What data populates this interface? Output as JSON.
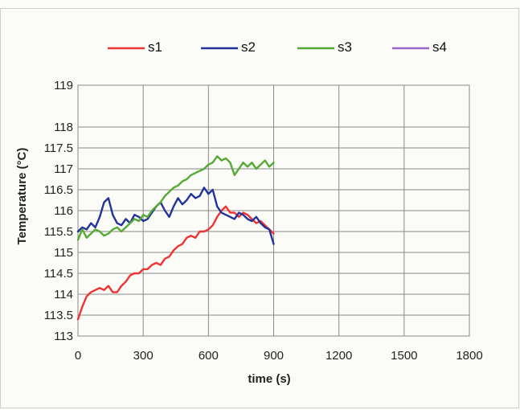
{
  "chart_data": {
    "type": "line",
    "title": "",
    "xlabel": "time (s)",
    "ylabel": "Temperature (°C)",
    "xlim": [
      0,
      1800
    ],
    "ylim": [
      113,
      119
    ],
    "xticks": [
      0,
      300,
      600,
      900,
      1200,
      1500,
      1800
    ],
    "xtick_labels": [
      "0",
      "300",
      "600",
      "900",
      "1200",
      "1500",
      "1800"
    ],
    "yticks": [
      113,
      113.5,
      114,
      114.5,
      115,
      115.5,
      116,
      116.5,
      117,
      117.5,
      118,
      119
    ],
    "ytick_labels": [
      "113",
      "113.5",
      "114",
      "114.5",
      "115",
      "115.5",
      "116",
      "116.5",
      "117",
      "117.5",
      "118",
      "119"
    ],
    "grid": true,
    "legend_position": "top",
    "series": [
      {
        "name": "s1",
        "color": "#ee3333",
        "x": [
          0,
          20,
          40,
          60,
          80,
          100,
          120,
          140,
          160,
          180,
          200,
          220,
          240,
          260,
          280,
          300,
          320,
          340,
          360,
          380,
          400,
          420,
          440,
          460,
          480,
          500,
          520,
          540,
          560,
          580,
          600,
          620,
          640,
          660,
          680,
          700,
          720,
          740,
          760,
          780,
          800,
          820,
          840,
          860,
          880,
          900
        ],
        "y": [
          113.4,
          113.7,
          113.95,
          114.05,
          114.1,
          114.15,
          114.1,
          114.2,
          114.05,
          114.05,
          114.2,
          114.3,
          114.45,
          114.5,
          114.5,
          114.6,
          114.6,
          114.7,
          114.75,
          114.7,
          114.85,
          114.9,
          115.05,
          115.15,
          115.2,
          115.35,
          115.4,
          115.35,
          115.5,
          115.5,
          115.55,
          115.65,
          115.85,
          116.0,
          116.1,
          115.95,
          115.95,
          115.85,
          115.95,
          115.9,
          115.8,
          115.7,
          115.75,
          115.65,
          115.55,
          115.45
        ]
      },
      {
        "name": "s2",
        "color": "#223399",
        "x": [
          0,
          20,
          40,
          60,
          80,
          100,
          120,
          140,
          160,
          180,
          200,
          220,
          240,
          260,
          280,
          300,
          320,
          340,
          360,
          380,
          400,
          420,
          440,
          460,
          480,
          500,
          520,
          540,
          560,
          580,
          600,
          620,
          640,
          660,
          680,
          700,
          720,
          740,
          760,
          780,
          800,
          820,
          840,
          860,
          880,
          900
        ],
        "y": [
          115.5,
          115.6,
          115.55,
          115.7,
          115.6,
          115.85,
          116.2,
          116.3,
          115.9,
          115.7,
          115.65,
          115.8,
          115.7,
          115.9,
          115.85,
          115.75,
          115.8,
          115.95,
          116.1,
          116.2,
          116.0,
          115.85,
          116.1,
          116.3,
          116.15,
          116.25,
          116.4,
          116.3,
          116.35,
          116.55,
          116.4,
          116.5,
          116.1,
          115.95,
          115.9,
          115.85,
          115.8,
          115.95,
          115.9,
          115.8,
          115.75,
          115.85,
          115.7,
          115.6,
          115.55,
          115.2
        ]
      },
      {
        "name": "s3",
        "color": "#55aa33",
        "x": [
          0,
          20,
          40,
          60,
          80,
          100,
          120,
          140,
          160,
          180,
          200,
          220,
          240,
          260,
          280,
          300,
          320,
          340,
          360,
          380,
          400,
          420,
          440,
          460,
          480,
          500,
          520,
          540,
          560,
          580,
          600,
          620,
          640,
          660,
          680,
          700,
          720,
          740,
          760,
          780,
          800,
          820,
          840,
          860,
          880,
          900
        ],
        "y": [
          115.3,
          115.55,
          115.35,
          115.45,
          115.55,
          115.5,
          115.4,
          115.45,
          115.55,
          115.6,
          115.5,
          115.6,
          115.7,
          115.8,
          115.75,
          115.9,
          115.85,
          116.0,
          116.1,
          116.2,
          116.35,
          116.45,
          116.55,
          116.6,
          116.7,
          116.75,
          116.85,
          116.9,
          116.95,
          117.0,
          117.1,
          117.15,
          117.3,
          117.2,
          117.25,
          117.15,
          116.85,
          117.0,
          117.15,
          117.05,
          117.15,
          117.0,
          117.1,
          117.2,
          117.05,
          117.15
        ]
      },
      {
        "name": "s4",
        "color": "#9966cc",
        "x": [],
        "y": []
      }
    ]
  }
}
